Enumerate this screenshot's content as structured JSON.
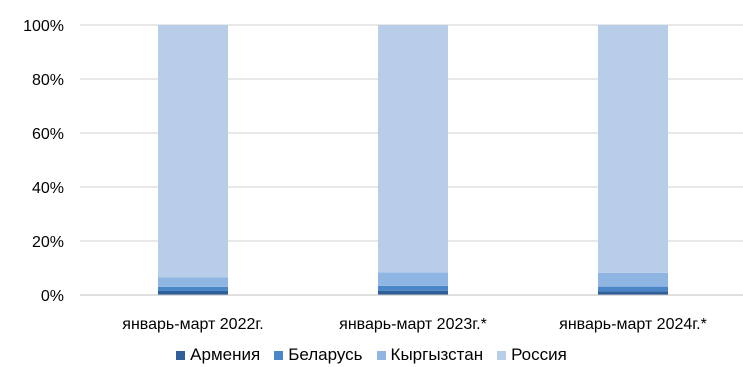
{
  "chart_data": {
    "type": "bar",
    "stacked": true,
    "percent_stacked": true,
    "categories": [
      "январь-март 2022г.",
      "январь-март 2023г.*",
      "январь-март 2024г.*"
    ],
    "series": [
      {
        "name": "Армения",
        "color": "#2f5f98",
        "values": [
          1.5,
          1.6,
          1.4
        ]
      },
      {
        "name": "Беларусь",
        "color": "#4a86c8",
        "values": [
          1.5,
          1.8,
          1.7
        ]
      },
      {
        "name": "Кыргызстан",
        "color": "#8fb6e2",
        "values": [
          3.5,
          5.0,
          5.1
        ]
      },
      {
        "name": "Россия",
        "color": "#b8cde8",
        "values": [
          93.5,
          91.6,
          91.8
        ]
      }
    ],
    "y_ticks": [
      "0%",
      "20%",
      "40%",
      "60%",
      "80%",
      "100%"
    ],
    "ylim": [
      0,
      100
    ],
    "legend_position": "bottom",
    "grid": true,
    "grid_color": "#d0d0d0"
  }
}
